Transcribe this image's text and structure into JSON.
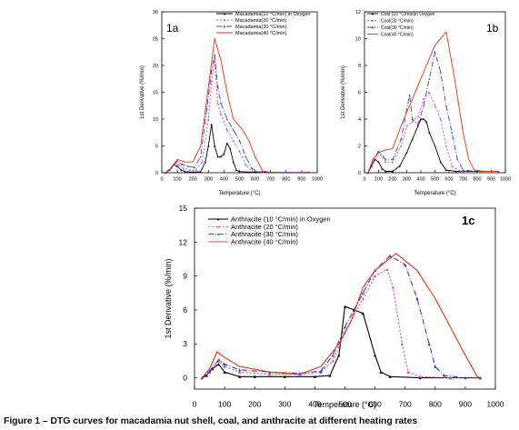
{
  "caption": "Figure 1 – DTG curves for macadamia nut shell, coal, and anthracite at different heating rates",
  "chart_data": [
    {
      "type": "line",
      "panel_label": "1a",
      "xlabel": "Temperature (°C)",
      "ylabel": "1st Derivative (%/min)",
      "xlim": [
        0,
        1000
      ],
      "ylim": [
        0,
        30
      ],
      "xticks": [
        "0",
        "100",
        "200",
        "300",
        "400",
        "500",
        "600",
        "700",
        "800",
        "900",
        "1000"
      ],
      "yticks": [
        "0",
        "5",
        "10",
        "15",
        "20",
        "25",
        "30"
      ],
      "legend_position": "top-right",
      "series": [
        {
          "name": "Macadamia(10 °C/min) in Oxygen",
          "color": "#000000",
          "dash": "",
          "marker": "tri",
          "points": [
            [
              25,
              0
            ],
            [
              50,
              0.5
            ],
            [
              75,
              1.5
            ],
            [
              100,
              1.2
            ],
            [
              125,
              0.5
            ],
            [
              150,
              0.2
            ],
            [
              200,
              0.1
            ],
            [
              250,
              0.2
            ],
            [
              280,
              2
            ],
            [
              300,
              5
            ],
            [
              320,
              9
            ],
            [
              340,
              5
            ],
            [
              360,
              3
            ],
            [
              380,
              3
            ],
            [
              400,
              3.5
            ],
            [
              420,
              5.5
            ],
            [
              440,
              4.5
            ],
            [
              460,
              2
            ],
            [
              480,
              0.5
            ],
            [
              500,
              0.2
            ],
            [
              600,
              0.1
            ],
            [
              700,
              0.1
            ],
            [
              800,
              0.1
            ],
            [
              900,
              0.1
            ],
            [
              950,
              0.1
            ]
          ]
        },
        {
          "name": "Macadamia(20 °C/min)",
          "color": "#cc44cc",
          "dash": "2,2",
          "marker": "tri",
          "points": [
            [
              25,
              0
            ],
            [
              60,
              0.8
            ],
            [
              90,
              1.8
            ],
            [
              110,
              1.5
            ],
            [
              140,
              0.8
            ],
            [
              180,
              0.5
            ],
            [
              220,
              0.5
            ],
            [
              260,
              2
            ],
            [
              300,
              10
            ],
            [
              320,
              17
            ],
            [
              340,
              21
            ],
            [
              360,
              13
            ],
            [
              380,
              11
            ],
            [
              420,
              8
            ],
            [
              460,
              6
            ],
            [
              500,
              4
            ],
            [
              540,
              1.5
            ],
            [
              580,
              0.3
            ],
            [
              650,
              0.1
            ],
            [
              750,
              0.1
            ],
            [
              850,
              0.1
            ],
            [
              950,
              0.1
            ]
          ]
        },
        {
          "name": "Macadamia(30 °C/min)",
          "color": "#3344aa",
          "dash": "6,2,1,2",
          "marker": "tri",
          "points": [
            [
              25,
              0
            ],
            [
              60,
              1
            ],
            [
              100,
              2.2
            ],
            [
              130,
              1.6
            ],
            [
              170,
              1.2
            ],
            [
              210,
              1
            ],
            [
              250,
              3
            ],
            [
              290,
              12
            ],
            [
              320,
              19
            ],
            [
              340,
              22
            ],
            [
              360,
              16
            ],
            [
              380,
              13
            ],
            [
              420,
              10
            ],
            [
              460,
              8
            ],
            [
              500,
              6
            ],
            [
              540,
              3
            ],
            [
              580,
              0.8
            ],
            [
              620,
              0.2
            ],
            [
              700,
              0.1
            ],
            [
              800,
              0.1
            ],
            [
              900,
              0.1
            ],
            [
              950,
              0.1
            ]
          ]
        },
        {
          "name": "Macadamia(40 °C/min)",
          "color": "#dd3311",
          "dash": "",
          "marker": "",
          "points": [
            [
              25,
              0
            ],
            [
              60,
              0.8
            ],
            [
              100,
              2.5
            ],
            [
              150,
              2
            ],
            [
              200,
              2
            ],
            [
              250,
              5
            ],
            [
              300,
              16
            ],
            [
              340,
              25
            ],
            [
              380,
              21
            ],
            [
              420,
              15
            ],
            [
              460,
              10
            ],
            [
              520,
              8
            ],
            [
              560,
              6
            ],
            [
              600,
              3
            ],
            [
              650,
              0.3
            ],
            [
              700,
              0.1
            ],
            [
              800,
              0.1
            ],
            [
              950,
              0.1
            ]
          ]
        }
      ]
    },
    {
      "type": "line",
      "panel_label": "1b",
      "xlabel": "Temperature (°C)",
      "ylabel": "1st Derivative (%/min)",
      "xlim": [
        0,
        1000
      ],
      "ylim": [
        0,
        12
      ],
      "xticks": [
        "0",
        "100",
        "200",
        "300",
        "400",
        "500",
        "600",
        "700",
        "800",
        "900",
        "1000"
      ],
      "yticks": [
        "0",
        "2",
        "4",
        "6",
        "8",
        "10",
        "12"
      ],
      "legend_position": "top-left",
      "series": [
        {
          "name": "Coal (10 °C/min)in Oxygen",
          "color": "#000000",
          "dash": "",
          "marker": "tri",
          "points": [
            [
              25,
              0
            ],
            [
              50,
              0.5
            ],
            [
              75,
              1
            ],
            [
              100,
              0.8
            ],
            [
              125,
              0.3
            ],
            [
              150,
              0.1
            ],
            [
              200,
              0.1
            ],
            [
              250,
              0.5
            ],
            [
              300,
              1.5
            ],
            [
              340,
              2.5
            ],
            [
              380,
              3.5
            ],
            [
              400,
              4
            ],
            [
              420,
              4
            ],
            [
              440,
              3.8
            ],
            [
              460,
              3
            ],
            [
              500,
              2
            ],
            [
              540,
              0.8
            ],
            [
              580,
              0.2
            ],
            [
              650,
              0.1
            ],
            [
              800,
              0.1
            ],
            [
              950,
              0.1
            ]
          ]
        },
        {
          "name": "Coal(20 °C/min)",
          "color": "#cc44cc",
          "dash": "2,2",
          "marker": "tri",
          "points": [
            [
              25,
              0
            ],
            [
              60,
              0.8
            ],
            [
              100,
              1.5
            ],
            [
              150,
              0.8
            ],
            [
              200,
              0.8
            ],
            [
              260,
              2
            ],
            [
              300,
              3.5
            ],
            [
              340,
              3.8
            ],
            [
              380,
              4.2
            ],
            [
              420,
              5.5
            ],
            [
              460,
              6
            ],
            [
              500,
              5
            ],
            [
              540,
              4
            ],
            [
              580,
              2
            ],
            [
              620,
              0.5
            ],
            [
              680,
              0.1
            ],
            [
              800,
              0.1
            ],
            [
              950,
              0.1
            ]
          ]
        },
        {
          "name": "Coal(30 °C/min)",
          "color": "#3344aa",
          "dash": "6,2,1,2",
          "marker": "tri",
          "points": [
            [
              25,
              0
            ],
            [
              60,
              1
            ],
            [
              100,
              1.6
            ],
            [
              150,
              1
            ],
            [
              200,
              1
            ],
            [
              260,
              2.5
            ],
            [
              320,
              5.8
            ],
            [
              340,
              4
            ],
            [
              380,
              3.6
            ],
            [
              420,
              5
            ],
            [
              460,
              7
            ],
            [
              500,
              9
            ],
            [
              540,
              7.5
            ],
            [
              580,
              5
            ],
            [
              620,
              3
            ],
            [
              660,
              1
            ],
            [
              700,
              0.2
            ],
            [
              800,
              0.1
            ],
            [
              950,
              0.1
            ]
          ]
        },
        {
          "name": "Coal(40 °C/min)",
          "color": "#dd3311",
          "dash": "",
          "marker": "",
          "points": [
            [
              25,
              0
            ],
            [
              60,
              1
            ],
            [
              100,
              1.5
            ],
            [
              150,
              1.7
            ],
            [
              200,
              1.8
            ],
            [
              260,
              3.5
            ],
            [
              320,
              5
            ],
            [
              380,
              6.5
            ],
            [
              440,
              8
            ],
            [
              500,
              9.5
            ],
            [
              580,
              10.5
            ],
            [
              640,
              7
            ],
            [
              700,
              3
            ],
            [
              740,
              1
            ],
            [
              780,
              0.2
            ],
            [
              850,
              0.1
            ],
            [
              950,
              0.1
            ]
          ]
        }
      ]
    },
    {
      "type": "line",
      "panel_label": "1c",
      "xlabel": "Temperature (°C)",
      "ylabel": "1st Derivative (%/min)",
      "xlim": [
        0,
        1000
      ],
      "ylim": [
        -1,
        15
      ],
      "xticks": [
        "0",
        "100",
        "200",
        "300",
        "400",
        "500",
        "600",
        "700",
        "800",
        "900",
        "1000"
      ],
      "yticks": [
        "0",
        "3",
        "6",
        "9",
        "12",
        "15"
      ],
      "legend_position": "top-left",
      "series": [
        {
          "name": "Anthracite (10 °C/min) in Oxygen",
          "color": "#000000",
          "dash": "",
          "marker": "tri",
          "points": [
            [
              25,
              0
            ],
            [
              40,
              0.2
            ],
            [
              60,
              0.8
            ],
            [
              80,
              1.2
            ],
            [
              100,
              0.5
            ],
            [
              150,
              0.1
            ],
            [
              200,
              0.1
            ],
            [
              300,
              0.1
            ],
            [
              400,
              0.1
            ],
            [
              450,
              0.2
            ],
            [
              480,
              2
            ],
            [
              500,
              6.3
            ],
            [
              530,
              6
            ],
            [
              560,
              5.7
            ],
            [
              600,
              2
            ],
            [
              620,
              0.5
            ],
            [
              650,
              0.1
            ],
            [
              750,
              0
            ],
            [
              850,
              0
            ],
            [
              950,
              0
            ]
          ]
        },
        {
          "name": "Anthracite (20 °C/min)",
          "color": "#cc44cc",
          "dash": "2,2",
          "marker": "tri",
          "points": [
            [
              25,
              0
            ],
            [
              50,
              0.5
            ],
            [
              80,
              1.5
            ],
            [
              100,
              1
            ],
            [
              150,
              0.5
            ],
            [
              250,
              0.3
            ],
            [
              350,
              0.3
            ],
            [
              420,
              0.5
            ],
            [
              460,
              1.5
            ],
            [
              500,
              4
            ],
            [
              560,
              7
            ],
            [
              600,
              9
            ],
            [
              640,
              9.6
            ],
            [
              660,
              8
            ],
            [
              690,
              3
            ],
            [
              710,
              0.5
            ],
            [
              750,
              0.1
            ],
            [
              850,
              0
            ],
            [
              950,
              0
            ]
          ]
        },
        {
          "name": "Anthracite (30 °C/min)",
          "color": "#3344aa",
          "dash": "6,2,1,2",
          "marker": "tri",
          "points": [
            [
              25,
              0
            ],
            [
              50,
              0.6
            ],
            [
              80,
              1.6
            ],
            [
              100,
              1.2
            ],
            [
              150,
              0.7
            ],
            [
              250,
              0.5
            ],
            [
              350,
              0.4
            ],
            [
              420,
              0.6
            ],
            [
              460,
              2
            ],
            [
              500,
              4.5
            ],
            [
              560,
              7.5
            ],
            [
              600,
              9.5
            ],
            [
              650,
              10.8
            ],
            [
              700,
              10
            ],
            [
              740,
              7
            ],
            [
              780,
              3
            ],
            [
              800,
              1
            ],
            [
              830,
              0.2
            ],
            [
              900,
              0
            ],
            [
              950,
              0
            ]
          ]
        },
        {
          "name": "Anthracite (40 °C/min)",
          "color": "#dd3311",
          "dash": "",
          "marker": "",
          "points": [
            [
              25,
              0
            ],
            [
              50,
              0.8
            ],
            [
              75,
              2.3
            ],
            [
              100,
              1.8
            ],
            [
              150,
              1
            ],
            [
              250,
              0.5
            ],
            [
              350,
              0.3
            ],
            [
              420,
              1
            ],
            [
              480,
              3
            ],
            [
              520,
              5
            ],
            [
              560,
              8
            ],
            [
              600,
              9.5
            ],
            [
              670,
              11
            ],
            [
              740,
              9.5
            ],
            [
              800,
              7
            ],
            [
              860,
              4
            ],
            [
              900,
              2
            ],
            [
              940,
              0.1
            ],
            [
              950,
              0
            ]
          ]
        }
      ]
    }
  ]
}
